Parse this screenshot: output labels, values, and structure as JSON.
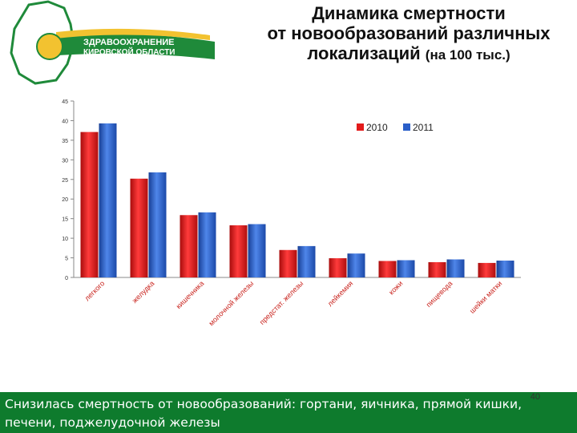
{
  "header": {
    "logo_line1": "ЗДРАВООХРАНЕНИЕ",
    "logo_line2": "КИРОВСКОЙ ОБЛАСТИ",
    "title_line1": "Динамика смертности",
    "title_line2": "от новообразований различных",
    "title_line3": "локализаций",
    "title_unit": "(на 100 тыс.)"
  },
  "colors": {
    "series_2010": "#e31b1b",
    "series_2011": "#2a5fc9",
    "footer_bg": "#0e7b2d"
  },
  "chart_data": {
    "type": "bar",
    "categories": [
      "легкого",
      "желудка",
      "кишечника",
      "молочной железы",
      "предстат. железы",
      "лейкемия",
      "кожи",
      "пищевода",
      "шейки матки"
    ],
    "series": [
      {
        "name": "2010",
        "values": [
          37.1,
          25.2,
          15.9,
          13.3,
          7.0,
          4.9,
          4.2,
          3.9,
          3.7
        ]
      },
      {
        "name": "2011",
        "values": [
          39.3,
          26.8,
          16.6,
          13.6,
          8.0,
          6.1,
          4.4,
          4.6,
          4.3
        ]
      }
    ],
    "yticks": [
      0,
      5,
      10,
      15,
      20,
      25,
      30,
      35,
      40,
      45
    ],
    "ylim": [
      0,
      45
    ],
    "legend_position": "top-right",
    "grid": false
  },
  "footer": {
    "text": "Снизилась смертность от новообразований: гортани, яичника, прямой кишки, печени, поджелудочной железы",
    "page_number": "40"
  }
}
